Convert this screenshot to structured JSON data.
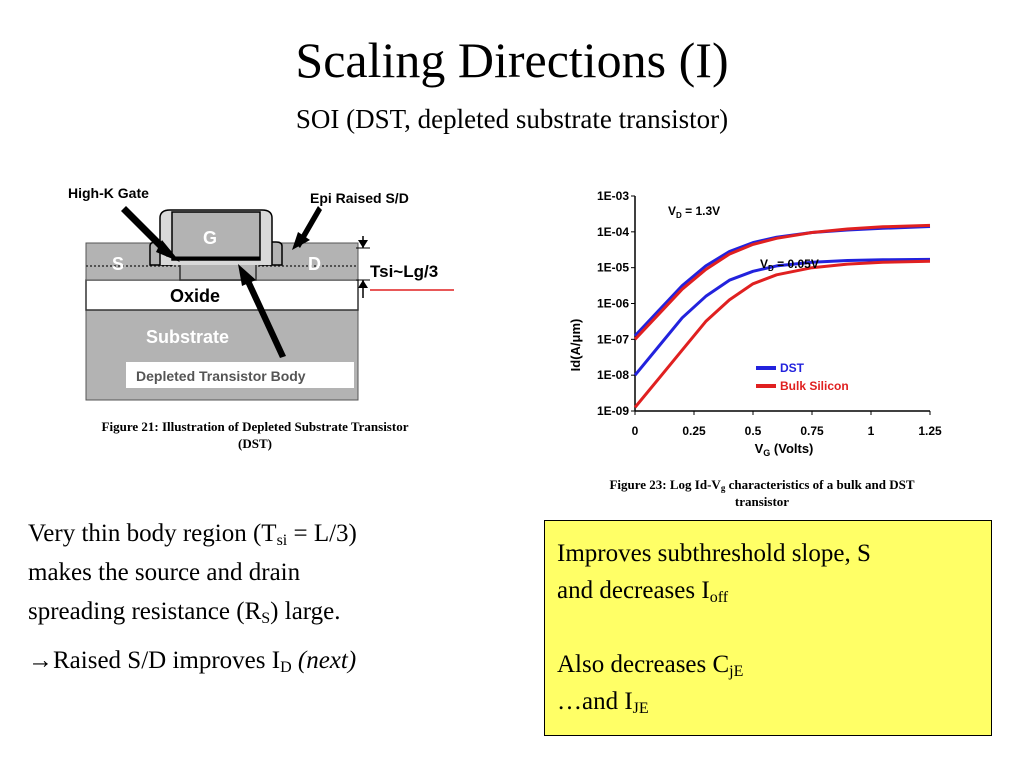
{
  "slide": {
    "title": "Scaling Directions (I)",
    "subtitle": "SOI (DST, depleted substrate transistor)"
  },
  "figure_left": {
    "labels": {
      "high_k_gate": "High-K Gate",
      "epi_raised": "Epi Raised S/D",
      "gate": "G",
      "source": "S",
      "drain": "D",
      "tsi": "Tsi~Lg/3",
      "oxide": "Oxide",
      "substrate": "Substrate",
      "depleted_body": "Depleted Transistor Body"
    },
    "caption_line1": "Figure 21: Illustration of Depleted Substrate Transistor",
    "caption_line2": "(DST)"
  },
  "figure_right": {
    "caption_line1_prefix": "Figure 23: Log Id-V",
    "caption_line1_sub": "g",
    "caption_line1_suffix": " characteristics of a bulk and DST",
    "caption_line2": "transistor"
  },
  "chart_data": {
    "type": "line",
    "xlabel": "V",
    "xlabel_sub": "G",
    "xlabel_suffix": " (Volts)",
    "ylabel": "Id(A/μm)",
    "xlim": [
      0,
      1.25
    ],
    "ylim_log10": [
      -9,
      -3
    ],
    "x_ticks": [
      "0",
      "0.25",
      "0.5",
      "0.75",
      "1",
      "1.25"
    ],
    "y_ticks": [
      "1E-03",
      "1E-04",
      "1E-05",
      "1E-06",
      "1E-07",
      "1E-08",
      "1E-09"
    ],
    "annotations": {
      "vd_high_prefix": "V",
      "vd_high_sub": "D",
      "vd_high_suffix": " = 1.3V",
      "vd_low_prefix": "V",
      "vd_low_sub": "D",
      "vd_low_suffix": " = 0.05V"
    },
    "legend": [
      {
        "label": "DST",
        "color": "#2222dd"
      },
      {
        "label": "Bulk Silicon",
        "color": "#e02020"
      }
    ],
    "legend_position": "bottom-right",
    "series": [
      {
        "name": "DST",
        "color": "#2222dd",
        "x": [
          0,
          0.1,
          0.2,
          0.3,
          0.4,
          0.5,
          0.6,
          0.75,
          0.9,
          1.05,
          1.25
        ],
        "log10_y": [
          -6.9,
          -6.2,
          -5.5,
          -4.95,
          -4.55,
          -4.3,
          -4.15,
          -4.02,
          -3.95,
          -3.9,
          -3.85
        ]
      },
      {
        "name": "Bulk Silicon",
        "color": "#e02020",
        "x": [
          0,
          0.1,
          0.2,
          0.3,
          0.4,
          0.5,
          0.6,
          0.75,
          0.9,
          1.05,
          1.25
        ],
        "log10_y": [
          -7.0,
          -6.3,
          -5.6,
          -5.05,
          -4.62,
          -4.35,
          -4.18,
          -4.02,
          -3.92,
          -3.86,
          -3.82
        ]
      },
      {
        "name": "DST",
        "color": "#2222dd",
        "x": [
          0,
          0.1,
          0.2,
          0.3,
          0.4,
          0.5,
          0.6,
          0.75,
          0.9,
          1.05,
          1.25
        ],
        "log10_y": [
          -8.0,
          -7.2,
          -6.4,
          -5.8,
          -5.35,
          -5.1,
          -4.95,
          -4.85,
          -4.8,
          -4.78,
          -4.77
        ]
      },
      {
        "name": "Bulk Silicon",
        "color": "#e02020",
        "x": [
          0,
          0.1,
          0.2,
          0.3,
          0.4,
          0.5,
          0.6,
          0.75,
          0.9,
          1.05,
          1.25
        ],
        "log10_y": [
          -8.9,
          -8.1,
          -7.3,
          -6.5,
          -5.9,
          -5.45,
          -5.2,
          -5.0,
          -4.9,
          -4.85,
          -4.82
        ]
      }
    ]
  },
  "body": {
    "p1_a": "Very thin body region (T",
    "p1_sub1": "si",
    "p1_b": " = L/3)",
    "p1_c": "makes the source and drain",
    "p1_d": "spreading resistance (R",
    "p1_sub2": "S",
    "p1_e": ") large.",
    "p2_arrow": "→",
    "p2_a": "Raised S/D improves I",
    "p2_sub": "D",
    "p2_b": " (next)"
  },
  "box": {
    "l1": "Improves subthreshold slope, S",
    "l2_a": "and decreases I",
    "l2_sub": "off",
    "l3_a": "Also decreases C",
    "l3_sub": "jE",
    "l4_a": "…and I",
    "l4_sub": "JE"
  }
}
